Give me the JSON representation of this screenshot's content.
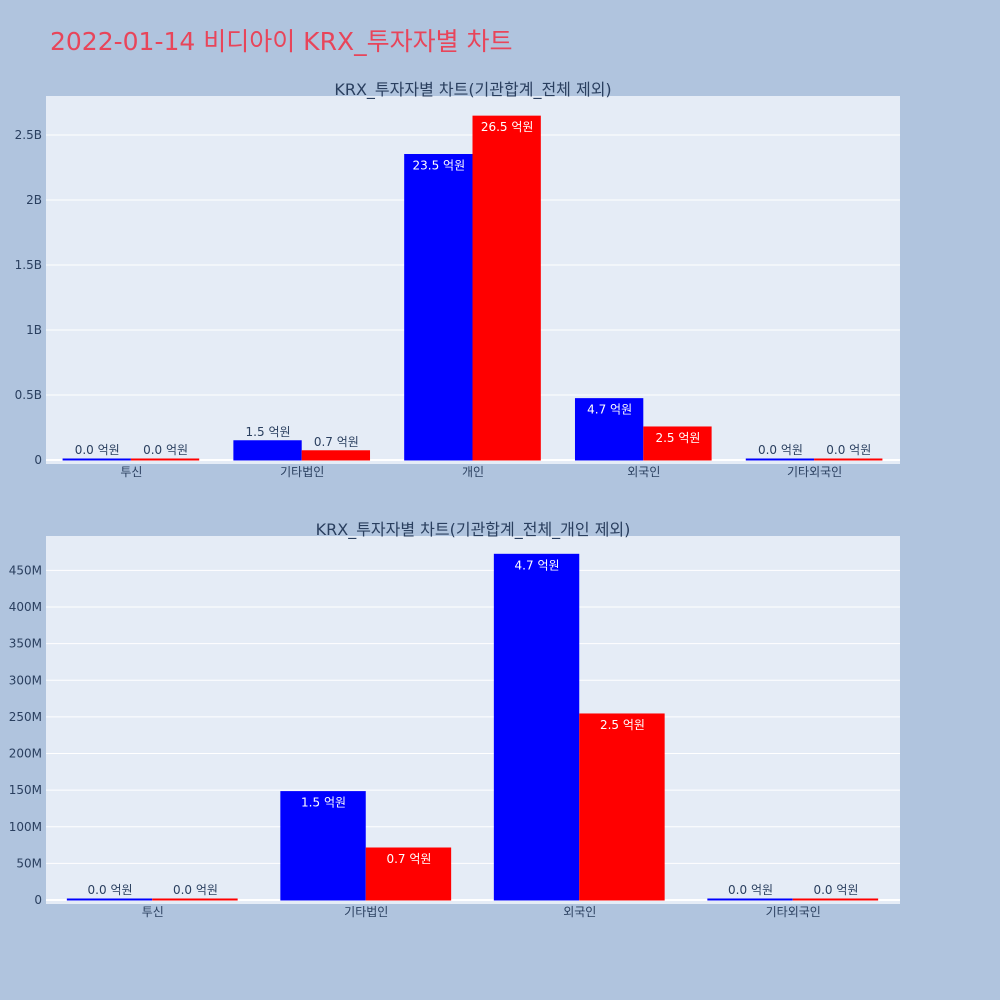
{
  "title": "2022-01-14 비디아이 KRX_투자자별 차트",
  "colors": {
    "buy": "#0000ff",
    "sell": "#ff0000",
    "plot_bg": "#e5ecf6",
    "page_bg": "#b0c4de",
    "title": "#e8455a"
  },
  "chart_data": [
    {
      "type": "bar",
      "title": "KRX_투자자별 차트(기관합계_전체 제외)",
      "categories": [
        "투신",
        "기타법인",
        "개인",
        "외국인",
        "기타외국인"
      ],
      "series": [
        {
          "color": "#0000ff",
          "values": [
            0,
            148000000,
            2350000000,
            472000000,
            0
          ],
          "labels": [
            "0.0 억원",
            "1.5 억원",
            "23.5 억원",
            "4.7 억원",
            "0.0 억원"
          ]
        },
        {
          "color": "#ff0000",
          "values": [
            0,
            71000000,
            2645000000,
            254000000,
            0
          ],
          "labels": [
            "0.0 억원",
            "0.7 억원",
            "26.5 억원",
            "2.5 억원",
            "0.0 억원"
          ]
        }
      ],
      "ylim": [
        0,
        2800000000
      ],
      "yticks": [
        0,
        500000000,
        1000000000,
        1500000000,
        2000000000,
        2500000000
      ],
      "ytick_labels": [
        "0",
        "0.5B",
        "1B",
        "1.5B",
        "2B",
        "2.5B"
      ],
      "grid": true,
      "legend": "none"
    },
    {
      "type": "bar",
      "title": "KRX_투자자별 차트(기관합계_전체_개인 제외)",
      "categories": [
        "투신",
        "기타법인",
        "외국인",
        "기타외국인"
      ],
      "series": [
        {
          "color": "#0000ff",
          "values": [
            0,
            148000000,
            472000000,
            0
          ],
          "labels": [
            "0.0 억원",
            "1.5 억원",
            "4.7 억원",
            "0.0 억원"
          ]
        },
        {
          "color": "#ff0000",
          "values": [
            0,
            71000000,
            254000000,
            0
          ],
          "labels": [
            "0.0 억원",
            "0.7 억원",
            "2.5 억원",
            "0.0 억원"
          ]
        }
      ],
      "ylim": [
        0,
        497000000
      ],
      "yticks": [
        0,
        50000000,
        100000000,
        150000000,
        200000000,
        250000000,
        300000000,
        350000000,
        400000000,
        450000000
      ],
      "ytick_labels": [
        "0",
        "50M",
        "100M",
        "150M",
        "200M",
        "250M",
        "300M",
        "350M",
        "400M",
        "450M"
      ],
      "grid": true,
      "legend": "none"
    }
  ]
}
